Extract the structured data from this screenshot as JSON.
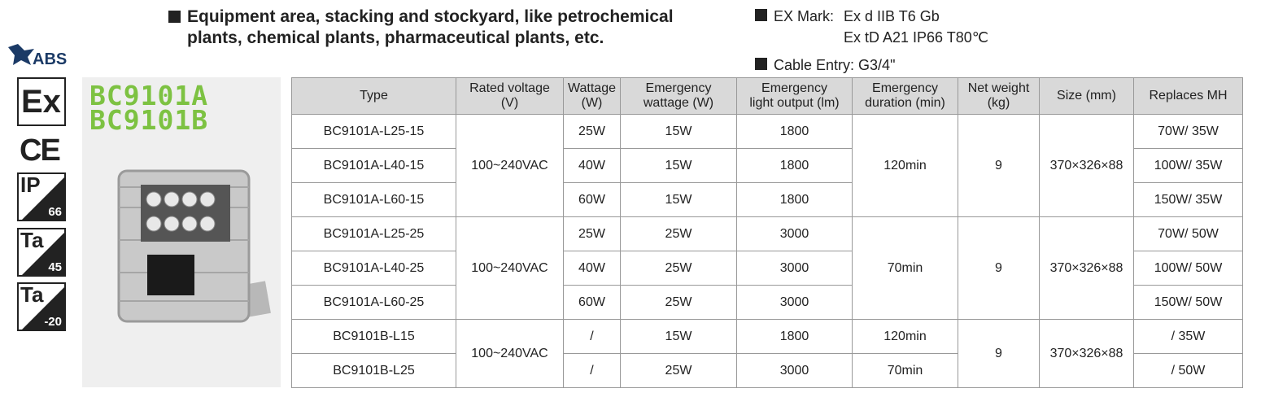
{
  "logos": {
    "abs": "ABS",
    "ex": "Ex",
    "ce": "CE",
    "ip": {
      "label": "IP",
      "value": "66"
    },
    "ta_high": {
      "label": "Ta",
      "value": "45"
    },
    "ta_low": {
      "label": "Ta",
      "value": "-20"
    }
  },
  "models": [
    "BC9101A",
    "BC9101B"
  ],
  "application": "Equipment area, stacking and stockyard, like petrochemical plants, chemical plants, pharmaceutical plants, etc.",
  "ex_mark": {
    "label": "EX Mark:",
    "lines": [
      "Ex d IIB T6 Gb",
      "Ex tD A21 IP66 T80℃"
    ]
  },
  "cable_entry": "Cable Entry: G3/4\"",
  "table": {
    "headers": [
      [
        "Type"
      ],
      [
        "Rated voltage",
        "(V)"
      ],
      [
        "Wattage",
        "(W)"
      ],
      [
        "Emergency",
        "wattage (W)"
      ],
      [
        "Emergency",
        "light output (lm)"
      ],
      [
        "Emergency",
        "duration (min)"
      ],
      [
        "Net weight",
        "(kg)"
      ],
      [
        "Size (mm)"
      ],
      [
        "Replaces MH"
      ]
    ],
    "groups": [
      {
        "rated_voltage": "100~240VAC",
        "duration": "120min",
        "net_weight": "9",
        "size": "370×326×88",
        "rows": [
          {
            "type": "BC9101A-L25-15",
            "wattage": "25W",
            "emergency_wattage": "15W",
            "light_output": "1800",
            "replaces": "70W/ 35W"
          },
          {
            "type": "BC9101A-L40-15",
            "wattage": "40W",
            "emergency_wattage": "15W",
            "light_output": "1800",
            "replaces": "100W/ 35W"
          },
          {
            "type": "BC9101A-L60-15",
            "wattage": "60W",
            "emergency_wattage": "15W",
            "light_output": "1800",
            "replaces": "150W/ 35W"
          }
        ]
      },
      {
        "rated_voltage": "100~240VAC",
        "duration": "70min",
        "net_weight": "9",
        "size": "370×326×88",
        "rows": [
          {
            "type": "BC9101A-L25-25",
            "wattage": "25W",
            "emergency_wattage": "25W",
            "light_output": "3000",
            "replaces": "70W/ 50W"
          },
          {
            "type": "BC9101A-L40-25",
            "wattage": "40W",
            "emergency_wattage": "25W",
            "light_output": "3000",
            "replaces": "100W/ 50W"
          },
          {
            "type": "BC9101A-L60-25",
            "wattage": "60W",
            "emergency_wattage": "25W",
            "light_output": "3000",
            "replaces": "150W/ 50W"
          }
        ]
      },
      {
        "rated_voltage": "100~240VAC",
        "net_weight": "9",
        "size": "370×326×88",
        "rows": [
          {
            "type": "BC9101B-L15",
            "wattage": "/",
            "emergency_wattage": "15W",
            "light_output": "1800",
            "duration": "120min",
            "replaces": "/ 35W"
          },
          {
            "type": "BC9101B-L25",
            "wattage": "/",
            "emergency_wattage": "25W",
            "light_output": "3000",
            "duration": "70min",
            "replaces": "/ 50W"
          }
        ]
      }
    ]
  }
}
